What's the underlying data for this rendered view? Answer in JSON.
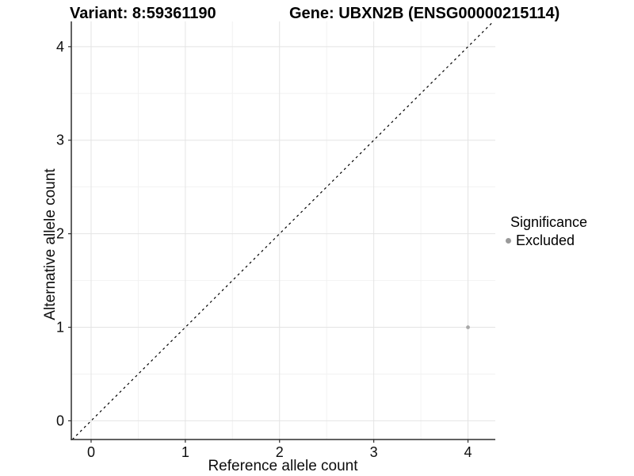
{
  "header": {
    "variant_title": "Variant: 8:59361190",
    "gene_title": "Gene: UBXN2B (ENSG00000215114)"
  },
  "chart_data": {
    "type": "scatter",
    "xlabel": "Reference allele count",
    "ylabel": "Alternative allele count",
    "xlim": [
      -0.21,
      4.29
    ],
    "ylim": [
      -0.2,
      4.27
    ],
    "x_ticks": [
      0,
      1,
      2,
      3,
      4
    ],
    "y_ticks": [
      0,
      1,
      2,
      3,
      4
    ],
    "grid": "major and minor on, white background",
    "identity_line": {
      "equation": "y = x",
      "style": "dashed",
      "color": "#000000"
    },
    "series": [
      {
        "name": "Excluded",
        "color": "#a8a8a8",
        "points": [
          [
            4,
            1
          ]
        ]
      }
    ],
    "legend": {
      "title": "Significance",
      "position": "right",
      "entries": [
        {
          "label": "Excluded",
          "color": "#9a9a9a"
        }
      ]
    }
  },
  "colors": {
    "major_grid": "#e4e4e4",
    "minor_grid": "#f2f2f2",
    "axis_line": "#2e2e2e",
    "tick_text": "#0d0d0d",
    "title_text": "#000000"
  }
}
